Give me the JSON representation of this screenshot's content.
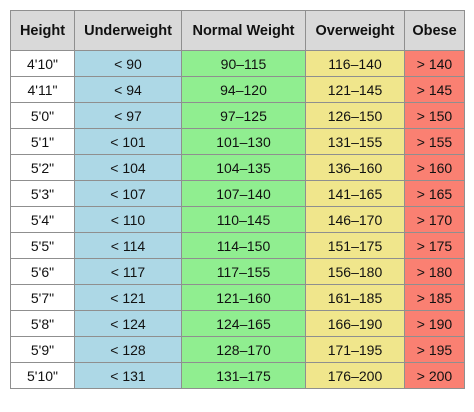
{
  "headers": [
    "Height",
    "Underweight",
    "Normal Weight",
    "Overweight",
    "Obese"
  ],
  "colors": {
    "header": "#d9d9d9",
    "height": "#ffffff",
    "underweight": "#add8e6",
    "normal": "#90ee90",
    "overweight": "#f0e68c",
    "obese": "#fa8072"
  },
  "rows": [
    {
      "height": "4'10\"",
      "underweight": "< 90",
      "normal": "90–115",
      "overweight": "116–140",
      "obese": "> 140"
    },
    {
      "height": "4'11\"",
      "underweight": "< 94",
      "normal": "94–120",
      "overweight": "121–145",
      "obese": "> 145"
    },
    {
      "height": "5'0\"",
      "underweight": "< 97",
      "normal": "97–125",
      "overweight": "126–150",
      "obese": "> 150"
    },
    {
      "height": "5'1\"",
      "underweight": "< 101",
      "normal": "101–130",
      "overweight": "131–155",
      "obese": "> 155"
    },
    {
      "height": "5'2\"",
      "underweight": "< 104",
      "normal": "104–135",
      "overweight": "136–160",
      "obese": "> 160"
    },
    {
      "height": "5'3\"",
      "underweight": "< 107",
      "normal": "107–140",
      "overweight": "141–165",
      "obese": "> 165"
    },
    {
      "height": "5'4\"",
      "underweight": "< 110",
      "normal": "110–145",
      "overweight": "146–170",
      "obese": "> 170"
    },
    {
      "height": "5'5\"",
      "underweight": "< 114",
      "normal": "114–150",
      "overweight": "151–175",
      "obese": "> 175"
    },
    {
      "height": "5'6\"",
      "underweight": "< 117",
      "normal": "117–155",
      "overweight": "156–180",
      "obese": "> 180"
    },
    {
      "height": "5'7\"",
      "underweight": "< 121",
      "normal": "121–160",
      "overweight": "161–185",
      "obese": "> 185"
    },
    {
      "height": "5'8\"",
      "underweight": "< 124",
      "normal": "124–165",
      "overweight": "166–190",
      "obese": "> 190"
    },
    {
      "height": "5'9\"",
      "underweight": "< 128",
      "normal": "128–170",
      "overweight": "171–195",
      "obese": "> 195"
    },
    {
      "height": "5'10\"",
      "underweight": "< 131",
      "normal": "131–175",
      "overweight": "176–200",
      "obese": "> 200"
    }
  ]
}
